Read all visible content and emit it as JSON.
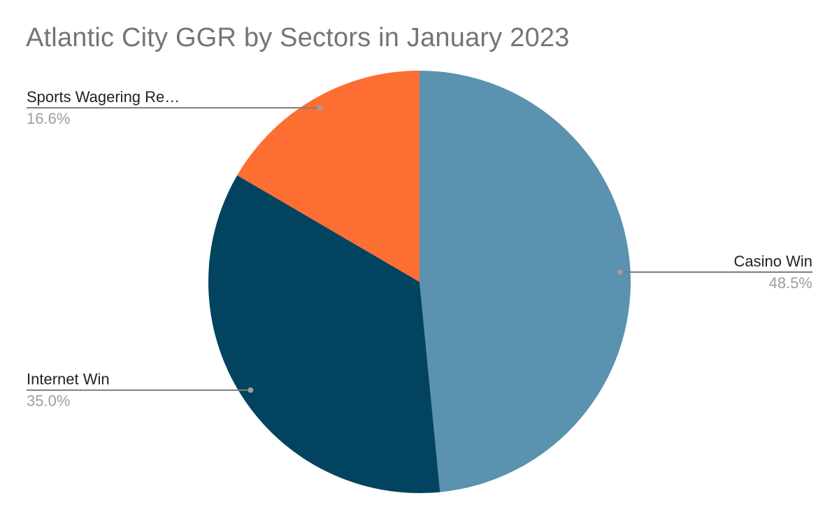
{
  "chart_data": {
    "type": "pie",
    "title": "Atlantic City GGR by Sectors in January 2023",
    "slices": [
      {
        "label": "Casino Win",
        "value": 48.5,
        "display_label": "Casino Win",
        "pct_label": "48.5%",
        "color": "#5a92af",
        "legend_side": "right"
      },
      {
        "label": "Internet Win",
        "value": 35.0,
        "display_label": "Internet Win",
        "pct_label": "35.0%",
        "color": "#02435f",
        "legend_side": "left"
      },
      {
        "label": "Sports Wagering Revenue",
        "value": 16.6,
        "display_label": "Sports Wagering Re…",
        "pct_label": "16.6%",
        "color": "#fd6e33",
        "legend_side": "left"
      }
    ],
    "start": "top",
    "direction": "clockwise",
    "leader_color": "#7d7d7d",
    "leader_dot_color": "#9e9e9e"
  }
}
